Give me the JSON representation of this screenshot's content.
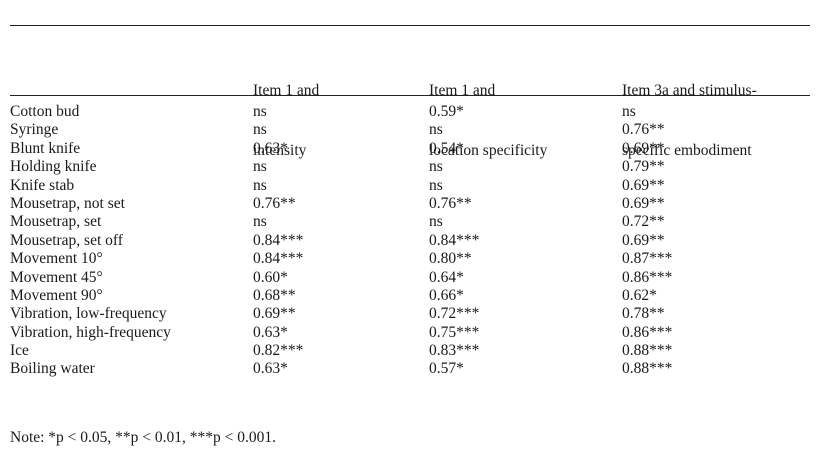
{
  "table": {
    "headers": [
      [
        "Item 1 and",
        "intensity"
      ],
      [
        "Item 1 and",
        "location specificity"
      ],
      [
        "Item 3a and stimulus-",
        "specific embodiment"
      ]
    ],
    "rows": [
      {
        "label": "Cotton bud",
        "values": [
          "ns",
          "0.59*",
          "ns"
        ]
      },
      {
        "label": "Syringe",
        "values": [
          "ns",
          "ns",
          "0.76**"
        ]
      },
      {
        "label": "Blunt knife",
        "values": [
          "0.63*",
          "0.54*",
          "0.69**"
        ]
      },
      {
        "label": "Holding knife",
        "values": [
          "ns",
          "ns",
          "0.79**"
        ]
      },
      {
        "label": "Knife stab",
        "values": [
          "ns",
          "ns",
          "0.69**"
        ]
      },
      {
        "label": "Mousetrap, not set",
        "values": [
          "0.76**",
          "0.76**",
          "0.69**"
        ]
      },
      {
        "label": "Mousetrap, set",
        "values": [
          "ns",
          "ns",
          "0.72**"
        ]
      },
      {
        "label": "Mousetrap, set off",
        "values": [
          "0.84***",
          "0.84***",
          "0.69**"
        ]
      },
      {
        "label": "Movement 10°",
        "values": [
          "0.84***",
          "0.80**",
          "0.87***"
        ]
      },
      {
        "label": "Movement 45°",
        "values": [
          "0.60*",
          "0.64*",
          "0.86***"
        ]
      },
      {
        "label": "Movement 90°",
        "values": [
          "0.68**",
          "0.66*",
          "0.62*"
        ]
      },
      {
        "label": "Vibration, low-frequency",
        "values": [
          "0.69**",
          "0.72***",
          "0.78**"
        ]
      },
      {
        "label": "Vibration, high-frequency",
        "values": [
          "0.63*",
          "0.75***",
          "0.86***"
        ]
      },
      {
        "label": "Ice",
        "values": [
          "0.82***",
          "0.83***",
          "0.88***"
        ]
      },
      {
        "label": "Boiling water",
        "values": [
          "0.63*",
          "0.57*",
          "0.88***"
        ]
      }
    ],
    "note": "Note: *p < 0.05, **p < 0.01, ***p < 0.001."
  }
}
